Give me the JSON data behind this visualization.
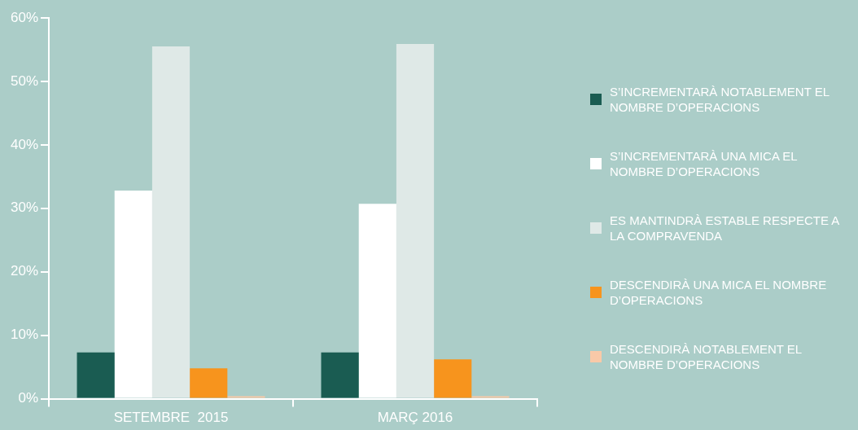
{
  "chart_data": {
    "type": "bar",
    "categories": [
      "SETEMBRE  2015",
      "MARÇ 2016"
    ],
    "series": [
      {
        "name": "S’INCREMENTARÀ NOTABLEMENT EL NOMBRE D’OPERACIONS",
        "color": "#1a5c52",
        "values": [
          7.3,
          7.3
        ]
      },
      {
        "name": "S’INCREMENTARÀ UNA MICA EL NOMBRE D’OPERACIONS",
        "color": "#ffffff",
        "values": [
          32.8,
          30.7
        ]
      },
      {
        "name": "ES MANTINDRÀ ESTABLE RESPECTE A LA COMPRAVENDA",
        "color": "#dfe9e7",
        "values": [
          55.5,
          55.9
        ]
      },
      {
        "name": "DESCENDIRÀ UNA MICA EL NOMBRE D’OPERACIONS",
        "color": "#f7941d",
        "values": [
          4.8,
          6.2
        ]
      },
      {
        "name": "DESCENDIRÀ NOTABLEMENT EL NOMBRE D’OPERACIONS",
        "color": "#f9c9a8",
        "values": [
          0.4,
          0.4
        ]
      }
    ],
    "ylim": [
      0,
      60
    ],
    "yticks": [
      {
        "value": 0,
        "label": "0%"
      },
      {
        "value": 10,
        "label": "10%"
      },
      {
        "value": 20,
        "label": "20%"
      },
      {
        "value": 30,
        "label": "30%"
      },
      {
        "value": 40,
        "label": "40%"
      },
      {
        "value": 50,
        "label": "50%"
      },
      {
        "value": 60,
        "label": "60%"
      }
    ],
    "grid": false,
    "legend": "right"
  }
}
